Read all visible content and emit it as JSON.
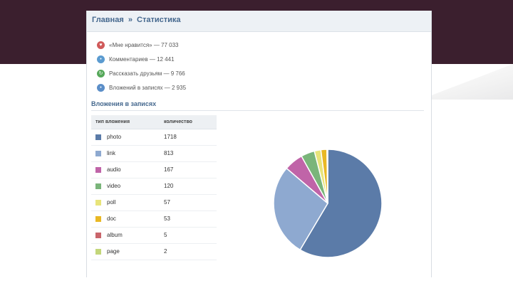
{
  "header": {
    "root": "Главная",
    "separator": "»",
    "current": "Статистика"
  },
  "stats": [
    {
      "icon": "heart-icon",
      "color": "#d05a5a",
      "glyph": "♥",
      "text": "«Мне нравится» — 77 033"
    },
    {
      "icon": "comment-icon",
      "color": "#5b9bd0",
      "glyph": "•",
      "text": "Комментариев — 12 441"
    },
    {
      "icon": "share-icon",
      "color": "#56a85a",
      "glyph": "↻",
      "text": "Рассказать друзьям — 9 766"
    },
    {
      "icon": "attachment-icon",
      "color": "#5b8ec8",
      "glyph": "•",
      "text": "Вложений в записях — 2 935"
    }
  ],
  "section_title": "Вложения в записях",
  "table": {
    "col_type": "тип вложения",
    "col_count": "количество",
    "rows": [
      {
        "type": "photo",
        "count": "1718",
        "color": "#5b7ba8"
      },
      {
        "type": "link",
        "count": "813",
        "color": "#8ea9d0"
      },
      {
        "type": "audio",
        "count": "167",
        "color": "#c064a8"
      },
      {
        "type": "video",
        "count": "120",
        "color": "#7ab57a"
      },
      {
        "type": "poll",
        "count": "57",
        "color": "#e8e47a"
      },
      {
        "type": "doc",
        "count": "53",
        "color": "#e9b824"
      },
      {
        "type": "album",
        "count": "5",
        "color": "#c9656b"
      },
      {
        "type": "page",
        "count": "2",
        "color": "#c3d67a"
      }
    ]
  },
  "chart_data": {
    "type": "pie",
    "categories": [
      "photo",
      "link",
      "audio",
      "video",
      "poll",
      "doc",
      "album",
      "page"
    ],
    "values": [
      1718,
      813,
      167,
      120,
      57,
      53,
      5,
      2
    ],
    "colors": [
      "#5b7ba8",
      "#8ea9d0",
      "#c064a8",
      "#7ab57a",
      "#e8e47a",
      "#e9b824",
      "#c9656b",
      "#c3d67a"
    ]
  }
}
